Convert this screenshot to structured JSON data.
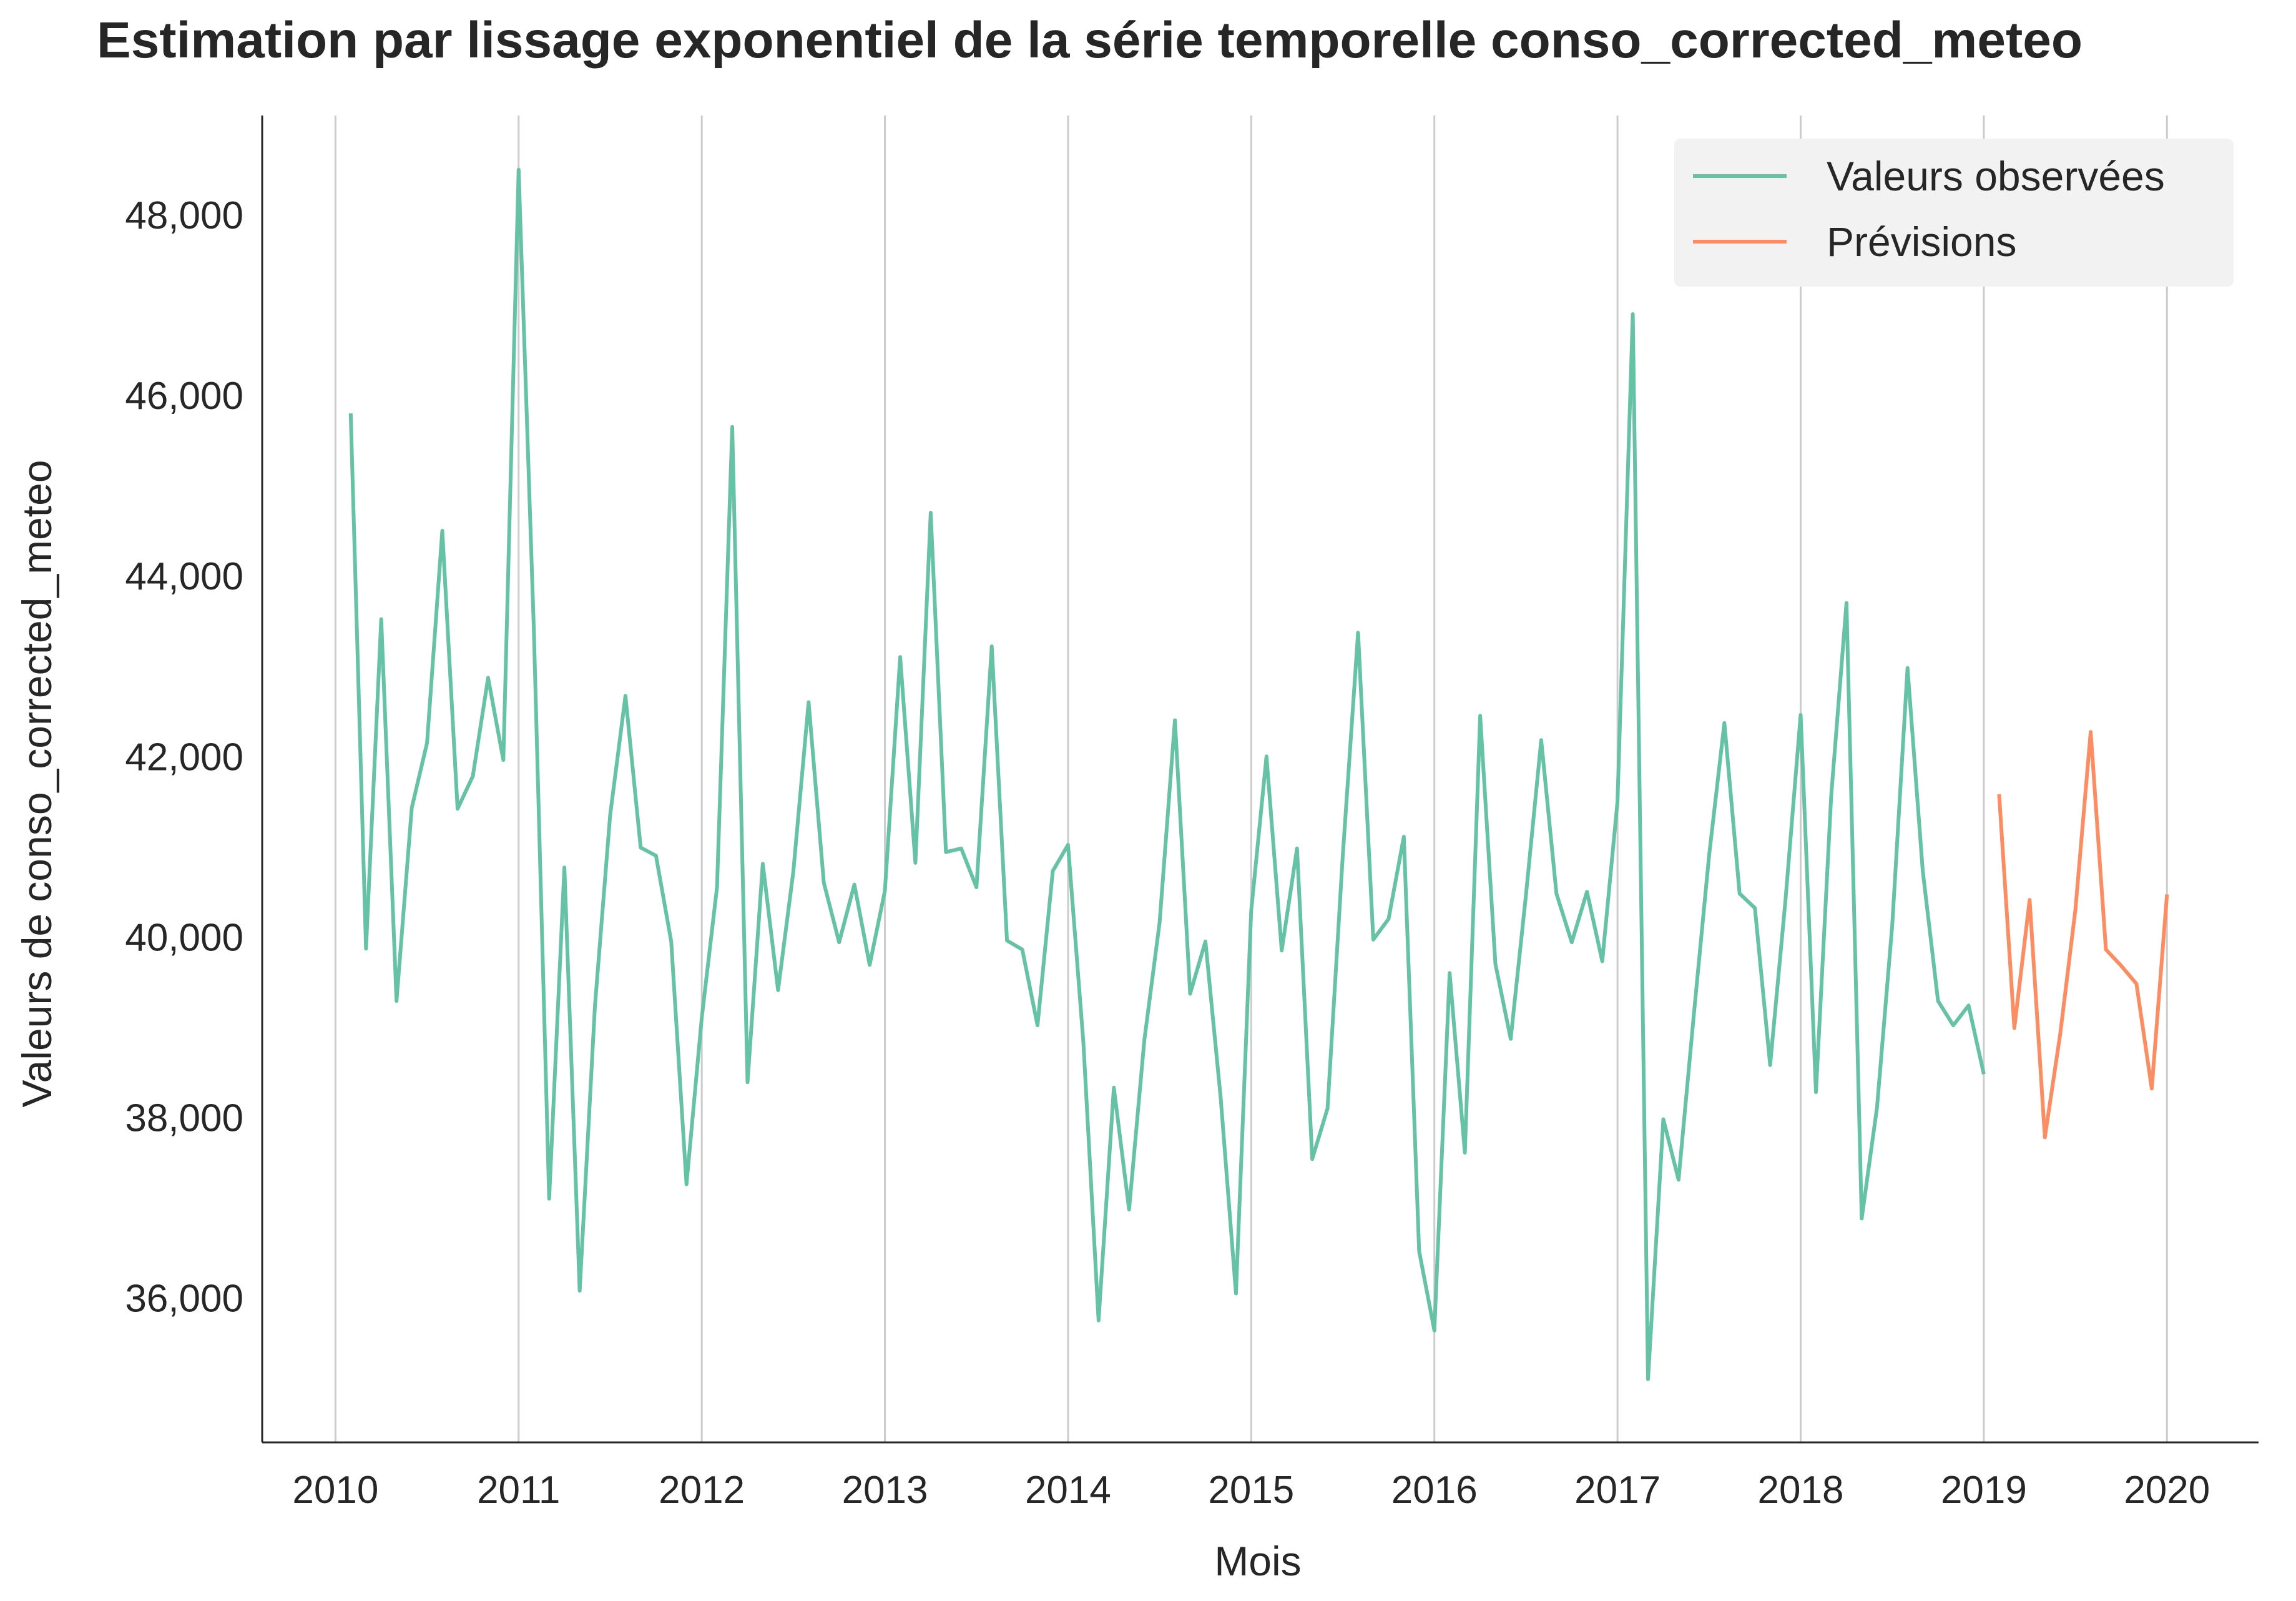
{
  "chart_data": {
    "type": "line",
    "title": "Estimation par lissage exponentiel de la série temporelle conso_corrected_meteo",
    "xlabel": "Mois",
    "ylabel": "Valeurs de conso_corrected_meteo",
    "xlim": [
      2009.6,
      2020.5
    ],
    "ylim": [
      34400,
      49100
    ],
    "x_ticks": [
      "2010",
      "2011",
      "2012",
      "2013",
      "2014",
      "2015",
      "2016",
      "2017",
      "2018",
      "2019",
      "2020"
    ],
    "y_ticks": [
      "36,000",
      "38,000",
      "40,000",
      "42,000",
      "44,000",
      "46,000",
      "48,000"
    ],
    "grid": "vertical",
    "legend_position": "top-right",
    "colors": {
      "observed": "#66c2a5",
      "forecast": "#fc8d62",
      "grid": "#cccccc",
      "axis": "#262626",
      "legend_bg": "#f2f2f2"
    },
    "series": [
      {
        "name": "Valeurs observées",
        "start": "2010-02",
        "values": [
          45800,
          39870,
          43520,
          39290,
          41430,
          42150,
          44500,
          41420,
          41780,
          42870,
          41960,
          48500,
          43400,
          37100,
          40770,
          36080,
          39230,
          41350,
          42670,
          40990,
          40900,
          39950,
          37260,
          39100,
          40550,
          45650,
          38390,
          40810,
          39410,
          40720,
          42600,
          40600,
          39940,
          40580,
          39690,
          40510,
          43100,
          40820,
          44700,
          40940,
          40980,
          40550,
          43220,
          39960,
          39860,
          39020,
          40730,
          41020,
          38840,
          35750,
          38330,
          36980,
          38860,
          40160,
          42400,
          39370,
          39950,
          38220,
          36050,
          40290,
          42000,
          39850,
          40980,
          37540,
          38100,
          40900,
          43370,
          39970,
          40200,
          41110,
          36520,
          35640,
          39600,
          37610,
          42450,
          39700,
          38870,
          40460,
          42180,
          40480,
          39940,
          40500,
          39730,
          41500,
          46900,
          35100,
          37980,
          37310,
          39140,
          40900,
          42370,
          40480,
          40320,
          38580,
          40400,
          42460,
          38280,
          41560,
          43700,
          36880,
          38110,
          40130,
          42980,
          40730,
          39290,
          39020,
          39240,
          38480
        ]
      },
      {
        "name": "Prévisions",
        "start": "2019-02",
        "values": [
          41580,
          38990,
          40410,
          37780,
          38920,
          40300,
          42270,
          39860,
          39680,
          39480,
          38320,
          40470
        ]
      }
    ]
  }
}
